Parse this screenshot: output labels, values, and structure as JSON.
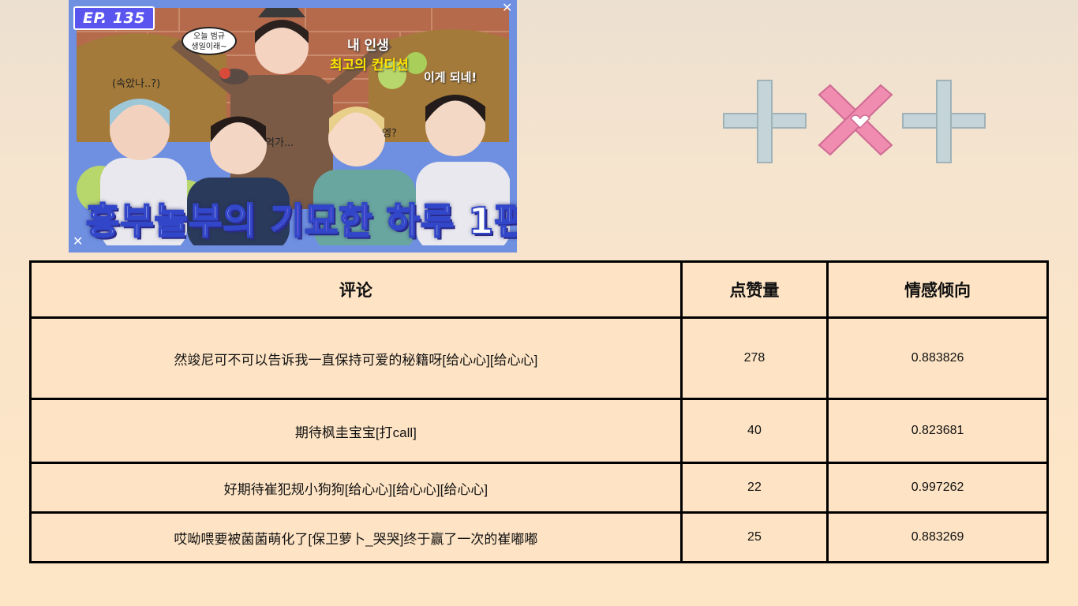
{
  "thumbnail": {
    "episode": "EP. 135",
    "title_part1": "흥부놀부의 ",
    "title_part2": "기묘한",
    "title_part3": " 하루 1편",
    "caption_mylife": "내 인생",
    "caption_condition": "최고의 컨디션",
    "caption_itworks": "이게 되네!",
    "caption_fooled": "(속았나..?)",
    "caption_um": "억가...",
    "caption_eh": "엥?",
    "speech_line1": "오늘 범규",
    "speech_line2": "생일이래~",
    "colors": {
      "border": "#6f8fe0",
      "badge": "#5b55f0",
      "title_accent": "#ff8cf4"
    }
  },
  "logo": {
    "icon": "txt-logo",
    "colors": {
      "cross": "#c5d4d8",
      "x": "#f08cb0"
    }
  },
  "table": {
    "headers": [
      "评论",
      "点赞量",
      "情感倾向"
    ],
    "rows": [
      {
        "comment": "然竣尼可不可以告诉我一直保持可爱的秘籍呀[给心心][给心心]",
        "likes": "278",
        "sentiment": "0.883826"
      },
      {
        "comment": "期待枫圭宝宝[打call]",
        "likes": "40",
        "sentiment": "0.823681"
      },
      {
        "comment": "好期待崔犯规小狗狗[给心心][给心心][给心心]",
        "likes": "22",
        "sentiment": "0.997262"
      },
      {
        "comment": "哎呦喂要被菌菌萌化了[保卫萝卜_哭哭]终于赢了一次的崔嘟嘟",
        "likes": "25",
        "sentiment": "0.883269"
      }
    ]
  }
}
